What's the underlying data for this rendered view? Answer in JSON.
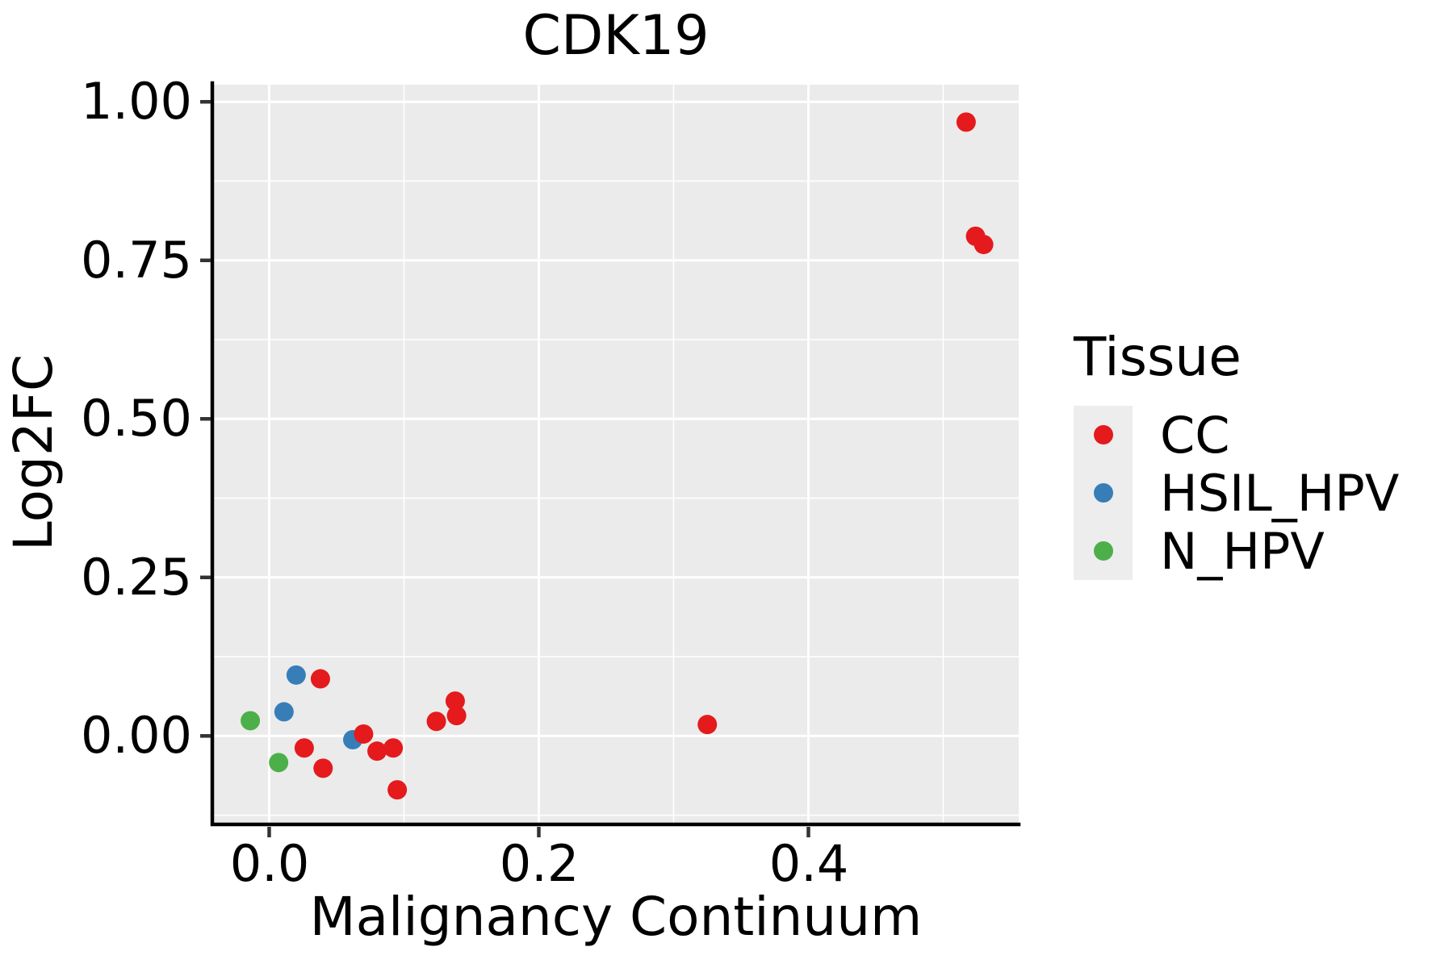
{
  "title": "CDK19",
  "axis": {
    "x": {
      "label": "Malignancy Continuum",
      "ticks": [
        {
          "value": 0.0,
          "label": "0.0"
        },
        {
          "value": 0.2,
          "label": "0.2"
        },
        {
          "value": 0.4,
          "label": "0.4"
        }
      ]
    },
    "y": {
      "label": "Log2FC",
      "ticks": [
        {
          "value": 1.0,
          "label": "1.00"
        },
        {
          "value": 0.75,
          "label": "0.75"
        },
        {
          "value": 0.5,
          "label": "0.50"
        },
        {
          "value": 0.25,
          "label": "0.25"
        },
        {
          "value": 0.0,
          "label": "0.00"
        }
      ]
    }
  },
  "legend": {
    "title": "Tissue",
    "position": "right",
    "items": [
      {
        "label": "CC",
        "color": "#E41A1C"
      },
      {
        "label": "HSIL_HPV",
        "color": "#377EB8"
      },
      {
        "label": "N_HPV",
        "color": "#4DAF4A"
      }
    ]
  },
  "chart_data": {
    "type": "scatter",
    "title": "CDK19",
    "xlabel": "Malignancy Continuum",
    "ylabel": "Log2FC",
    "xlim": [
      -0.041,
      0.556
    ],
    "ylim": [
      -0.137,
      1.027
    ],
    "x_major_gridlines": [
      0.0,
      0.2,
      0.4
    ],
    "x_minor_gridlines": [
      0.1,
      0.3,
      0.5
    ],
    "y_major_gridlines": [
      0.0,
      0.25,
      0.5,
      0.75,
      1.0
    ],
    "y_minor_gridlines": [
      -0.125,
      0.125,
      0.375,
      0.625,
      0.875
    ],
    "panel_background": "#EBEBEB",
    "gridline_color": "#FFFFFF",
    "axis_line_color": "#000000",
    "tick_mark_color": "#333333",
    "legend_key_background": "#EDEDED",
    "point_radius": 12,
    "series": [
      {
        "name": "N_HPV",
        "color": "#4DAF4A",
        "points": [
          [
            -0.014,
            0.024
          ],
          [
            0.007,
            -0.042
          ]
        ]
      },
      {
        "name": "HSIL_HPV",
        "color": "#377EB8",
        "points": [
          [
            0.02,
            0.096
          ],
          [
            0.011,
            0.038
          ],
          [
            0.062,
            -0.006
          ]
        ]
      },
      {
        "name": "CC",
        "color": "#E41A1C",
        "points": [
          [
            0.038,
            0.09
          ],
          [
            0.124,
            0.023
          ],
          [
            0.138,
            0.055
          ],
          [
            0.139,
            0.032
          ],
          [
            0.026,
            -0.019
          ],
          [
            0.04,
            -0.051
          ],
          [
            0.095,
            -0.085
          ],
          [
            0.08,
            -0.024
          ],
          [
            0.092,
            -0.019
          ],
          [
            0.07,
            0.003
          ],
          [
            0.325,
            0.018
          ],
          [
            0.517,
            0.968
          ],
          [
            0.524,
            0.788
          ],
          [
            0.53,
            0.775
          ]
        ]
      }
    ]
  }
}
